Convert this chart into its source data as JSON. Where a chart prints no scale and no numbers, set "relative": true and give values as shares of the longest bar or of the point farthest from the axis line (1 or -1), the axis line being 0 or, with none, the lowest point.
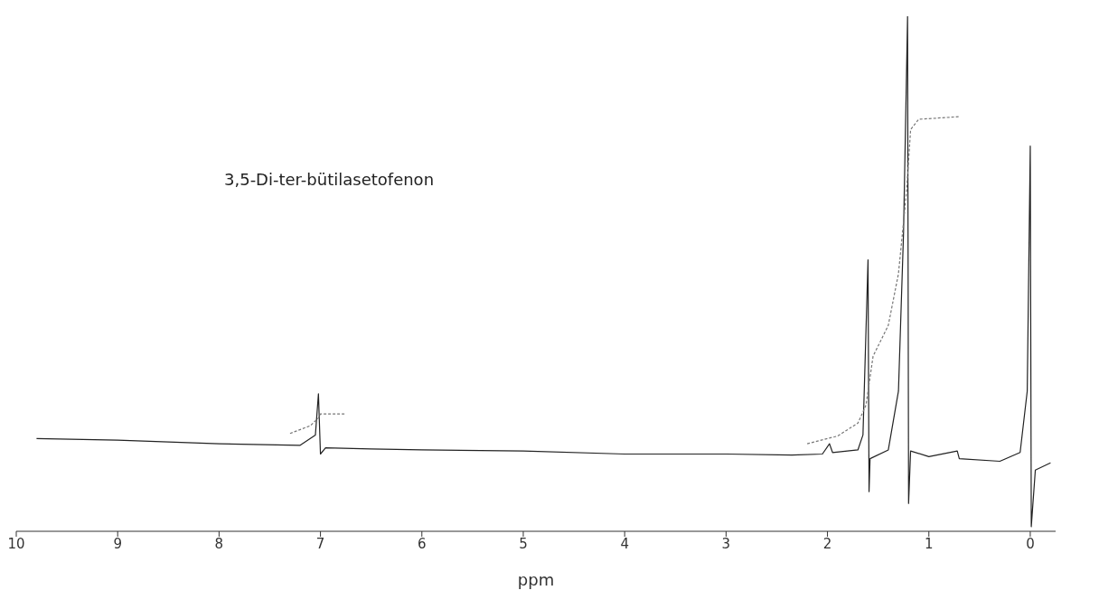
{
  "chart_data": {
    "type": "line",
    "title": "3,5-Di-ter-bütilasetofenon",
    "xlabel": "ppm",
    "relative": true,
    "xlim": [
      10,
      -0.25
    ],
    "xticks": [
      10,
      9,
      8,
      7,
      6,
      5,
      4,
      3,
      2,
      1,
      0
    ],
    "tick_labels": "x",
    "grid": false,
    "legend": false,
    "marker": "none",
    "series": [
      {
        "color": "#222222",
        "line_style": "solid",
        "x": [
          9.8,
          9.0,
          8.0,
          7.2,
          7.05,
          7.02,
          7.0,
          6.95,
          6.5,
          6.0,
          5.0,
          4.0,
          3.0,
          2.35,
          2.05,
          1.98,
          1.95,
          1.7,
          1.65,
          1.6,
          1.59,
          1.58,
          1.4,
          1.3,
          1.25,
          1.21,
          1.2,
          1.18,
          1.0,
          0.72,
          0.7,
          0.3,
          0.1,
          0.03,
          0.0,
          -0.01,
          -0.05,
          -0.2
        ],
        "values": [
          0.18,
          0.177,
          0.17,
          0.167,
          0.187,
          0.267,
          0.15,
          0.162,
          0.16,
          0.158,
          0.156,
          0.15,
          0.15,
          0.148,
          0.15,
          0.17,
          0.153,
          0.158,
          0.187,
          0.527,
          0.077,
          0.141,
          0.158,
          0.272,
          0.578,
          1.0,
          0.054,
          0.156,
          0.145,
          0.156,
          0.141,
          0.136,
          0.153,
          0.272,
          0.748,
          0.009,
          0.119,
          0.133
        ]
      },
      {
        "color": "#777777",
        "line_style": "dashed",
        "x": [
          7.3,
          7.1,
          7.02,
          7.0,
          6.75
        ],
        "values": [
          0.19,
          0.205,
          0.22,
          0.228,
          0.228
        ]
      },
      {
        "color": "#777777",
        "line_style": "dashed",
        "x": [
          2.2,
          1.9,
          1.7,
          1.62,
          1.55,
          1.4,
          1.3,
          1.22,
          1.18,
          1.1,
          0.7
        ],
        "values": [
          0.17,
          0.185,
          0.21,
          0.245,
          0.34,
          0.4,
          0.5,
          0.66,
          0.78,
          0.8,
          0.805
        ]
      }
    ]
  }
}
